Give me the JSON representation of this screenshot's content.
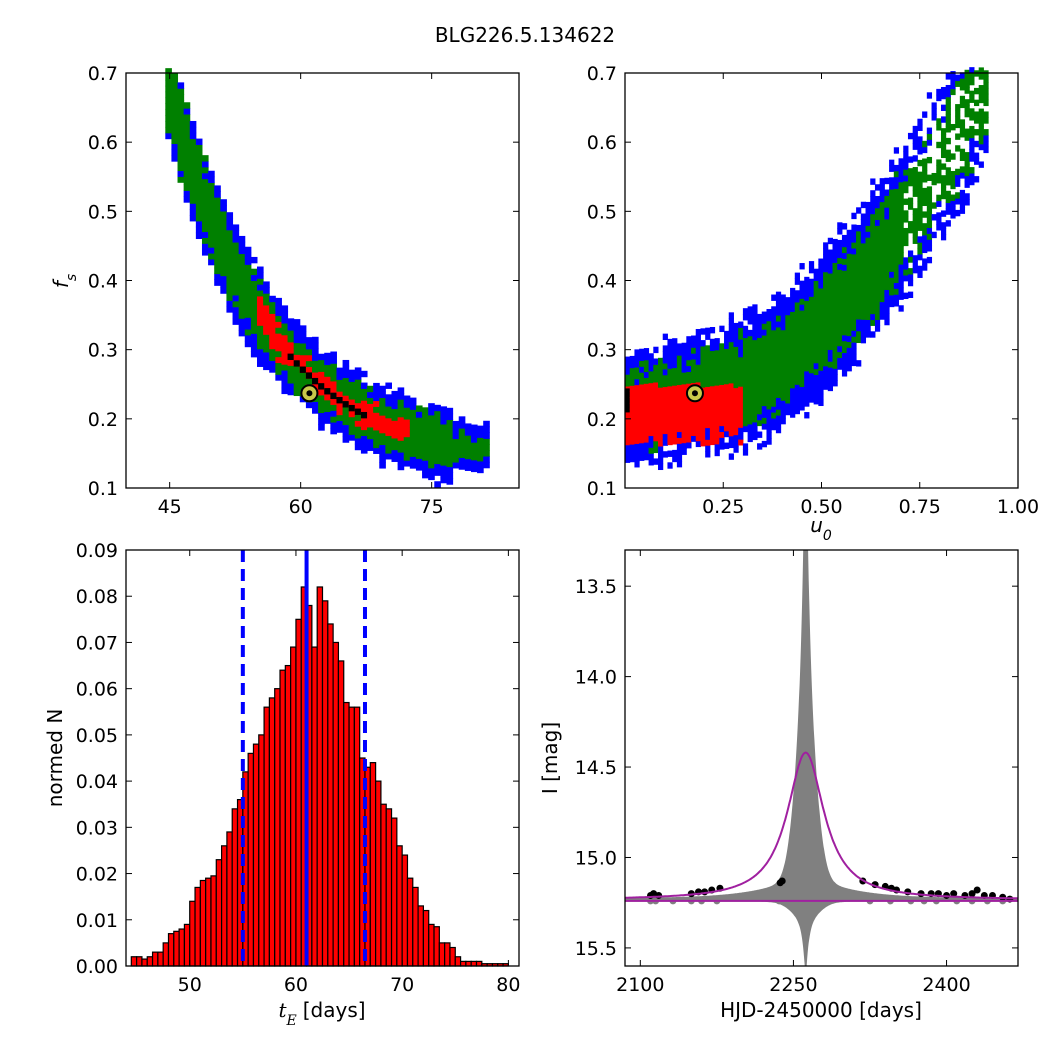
{
  "figure": {
    "title": "BLG226.5.134622"
  },
  "colors": {
    "sigma3": "#0000ff",
    "sigma2": "#008000",
    "sigma1": "#ff0000",
    "best": "#000000",
    "marker_fill": "#c8c84a",
    "hist_fill": "#ff0000",
    "hist_edge": "#000000",
    "median_line": "#0000ff",
    "model_line": "#a020a0",
    "band": "#808080",
    "data_points": "#000000",
    "residual_points": "#808080"
  },
  "chart_data": [
    {
      "id": "ts_vs_fs",
      "type": "heatmap",
      "xlabel": "",
      "ylabel": "f_s",
      "xlim": [
        40,
        85
      ],
      "ylim": [
        0.1,
        0.7
      ],
      "xticks": [
        45,
        60,
        75
      ],
      "yticks": [
        0.1,
        0.2,
        0.3,
        0.4,
        0.5,
        0.6,
        0.7
      ],
      "density_curve": {
        "description_points_x": [
          45,
          48,
          50,
          52,
          55,
          58,
          61,
          64,
          67,
          70,
          73,
          76,
          80
        ],
        "fs_center": [
          0.66,
          0.58,
          0.5,
          0.45,
          0.38,
          0.31,
          0.25,
          0.22,
          0.19,
          0.17,
          0.155,
          0.14,
          0.13
        ]
      },
      "best_fit": {
        "x": 61,
        "y": 0.237
      }
    },
    {
      "id": "u0_vs_fs",
      "type": "heatmap",
      "xlabel": "u_0",
      "ylabel": "",
      "xlim": [
        0.0,
        1.0
      ],
      "ylim": [
        0.1,
        0.7
      ],
      "xticks": [
        0.25,
        0.5,
        0.75,
        1.0
      ],
      "xtick_labels": [
        "0.25",
        "0.50",
        "0.75",
        "1.00"
      ],
      "yticks": [
        0.1,
        0.2,
        0.3,
        0.4,
        0.5,
        0.6,
        0.7
      ],
      "best_fit": {
        "x": 0.178,
        "y": 0.237
      }
    },
    {
      "id": "tE_histogram",
      "type": "bar",
      "xlabel": "t_E [days]",
      "ylabel": "normed N",
      "xlim": [
        44,
        81
      ],
      "ylim": [
        0,
        0.09
      ],
      "xticks": [
        50,
        60,
        70,
        80
      ],
      "yticks": [
        0.0,
        0.01,
        0.02,
        0.03,
        0.04,
        0.05,
        0.06,
        0.07,
        0.08,
        0.09
      ],
      "ytick_labels": [
        "0.00",
        "0.01",
        "0.02",
        "0.03",
        "0.04",
        "0.05",
        "0.06",
        "0.07",
        "0.08",
        "0.09"
      ],
      "bin_start": 44.5,
      "bin_width": 0.5,
      "values": [
        0.002,
        0.002,
        0.0015,
        0.002,
        0.003,
        0.003,
        0.005,
        0.007,
        0.0075,
        0.008,
        0.009,
        0.014,
        0.017,
        0.0185,
        0.019,
        0.0195,
        0.023,
        0.026,
        0.029,
        0.034,
        0.036,
        0.042,
        0.046,
        0.048,
        0.05,
        0.056,
        0.058,
        0.06,
        0.064,
        0.065,
        0.069,
        0.075,
        0.082,
        0.078,
        0.069,
        0.082,
        0.079,
        0.074,
        0.07,
        0.066,
        0.057,
        0.056,
        0.056,
        0.045,
        0.043,
        0.044,
        0.04,
        0.035,
        0.034,
        0.032,
        0.026,
        0.024,
        0.019,
        0.017,
        0.013,
        0.012,
        0.009,
        0.0085,
        0.005,
        0.005,
        0.004,
        0.002,
        0.001,
        0.001,
        0.001,
        0.001,
        0.0005,
        0.0005,
        0.0005,
        0.0005,
        0.0005,
        0.0
      ],
      "median": 61.0,
      "lower": 55.0,
      "upper": 66.5
    },
    {
      "id": "lightcurve",
      "type": "line",
      "xlabel": "HJD-2450000 [days]",
      "ylabel": "I [mag]",
      "xlim": [
        2085,
        2470
      ],
      "ylim": [
        15.6,
        13.3
      ],
      "xticks": [
        2100,
        2250,
        2400
      ],
      "yticks": [
        13.5,
        14.0,
        14.5,
        15.0,
        15.5
      ],
      "ytick_labels": [
        "13.5",
        "14.0",
        "14.5",
        "15.0",
        "15.5"
      ],
      "baseline_mag": 15.235,
      "peak_time": 2262,
      "peak_mag": 14.42,
      "tE": 61,
      "data_points": [
        [
          2110,
          15.21
        ],
        [
          2113,
          15.2
        ],
        [
          2118,
          15.21
        ],
        [
          2150,
          15.2
        ],
        [
          2157,
          15.19
        ],
        [
          2163,
          15.19
        ],
        [
          2170,
          15.18
        ],
        [
          2178,
          15.17
        ],
        [
          2237,
          15.14
        ],
        [
          2239,
          15.13
        ],
        [
          2318,
          15.13
        ],
        [
          2330,
          15.15
        ],
        [
          2340,
          15.16
        ],
        [
          2346,
          15.17
        ],
        [
          2351,
          15.18
        ],
        [
          2362,
          15.19
        ],
        [
          2375,
          15.2
        ],
        [
          2385,
          15.2
        ],
        [
          2392,
          15.2
        ],
        [
          2400,
          15.21
        ],
        [
          2407,
          15.2
        ],
        [
          2418,
          15.21
        ],
        [
          2425,
          15.2
        ],
        [
          2430,
          15.18
        ],
        [
          2437,
          15.21
        ],
        [
          2445,
          15.21
        ],
        [
          2455,
          15.22
        ],
        [
          2462,
          15.23
        ]
      ],
      "residual_points": [
        [
          2110,
          15.24
        ],
        [
          2115,
          15.24
        ],
        [
          2132,
          15.24
        ],
        [
          2150,
          15.24
        ],
        [
          2160,
          15.24
        ],
        [
          2175,
          15.24
        ],
        [
          2236,
          15.24
        ],
        [
          2325,
          15.24
        ],
        [
          2345,
          15.24
        ],
        [
          2365,
          15.24
        ],
        [
          2378,
          15.24
        ],
        [
          2390,
          15.24
        ],
        [
          2410,
          15.24
        ],
        [
          2425,
          15.24
        ],
        [
          2440,
          15.24
        ],
        [
          2455,
          15.24
        ]
      ]
    }
  ]
}
